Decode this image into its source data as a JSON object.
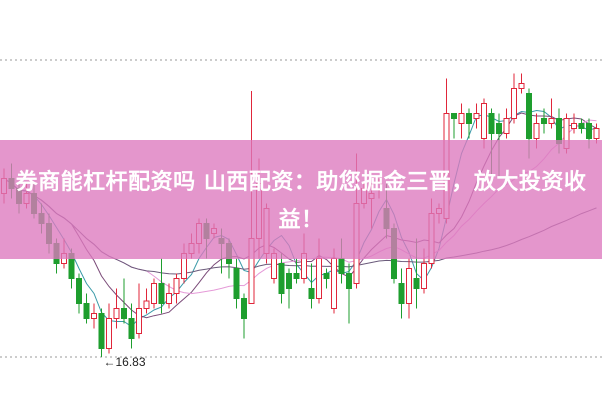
{
  "title": "券商能杠杆配资吗 山西配资：助您掘金三晋，放大投资收益！",
  "colors": {
    "up": "#e0263a",
    "down": "#1e9e2e",
    "banner": "#dd78be",
    "ma5": "#3a9aa8",
    "ma10": "#7a4a78",
    "ma20": "#e59ad8",
    "ma60": "#6a5a7a"
  },
  "chart_data": {
    "type": "candlestick",
    "annotations": [
      {
        "label": "←16.83",
        "price": 16.83,
        "candle": 14
      }
    ],
    "moving_averages": [
      5,
      10,
      20,
      60
    ],
    "grid": "dashed top and bottom lines",
    "ylim": [
      16.8,
      23.0
    ],
    "ohlc": [
      [
        20.1,
        20.4,
        20.6,
        19.9
      ],
      [
        20.4,
        20.2,
        20.7,
        20.0
      ],
      [
        20.2,
        19.9,
        20.3,
        19.7
      ],
      [
        19.9,
        20.1,
        20.3,
        19.8
      ],
      [
        20.1,
        19.7,
        20.3,
        19.6
      ],
      [
        19.7,
        19.5,
        19.9,
        19.3
      ],
      [
        19.5,
        19.1,
        19.7,
        18.9
      ],
      [
        19.1,
        18.7,
        19.2,
        18.5
      ],
      [
        18.7,
        18.9,
        19.2,
        18.6
      ],
      [
        18.9,
        18.4,
        19.0,
        18.2
      ],
      [
        18.4,
        17.9,
        18.5,
        17.7
      ],
      [
        17.9,
        17.6,
        18.1,
        17.5
      ],
      [
        17.6,
        17.7,
        17.9,
        17.4
      ],
      [
        17.7,
        17.0,
        17.8,
        16.83
      ],
      [
        17.0,
        17.6,
        17.9,
        16.9
      ],
      [
        17.6,
        17.8,
        18.2,
        17.4
      ],
      [
        17.8,
        17.6,
        18.4,
        17.5
      ],
      [
        17.6,
        17.2,
        17.9,
        17.0
      ],
      [
        17.3,
        17.8,
        18.3,
        17.2
      ],
      [
        17.8,
        17.95,
        18.2,
        17.7
      ],
      [
        17.9,
        18.3,
        18.4,
        17.8
      ],
      [
        18.3,
        17.9,
        18.8,
        17.7
      ],
      [
        17.9,
        18.1,
        18.3,
        17.8
      ],
      [
        18.1,
        18.4,
        18.5,
        17.9
      ],
      [
        18.4,
        18.9,
        19.1,
        18.3
      ],
      [
        18.9,
        19.1,
        19.3,
        18.8
      ],
      [
        19.1,
        19.5,
        19.6,
        18.9
      ],
      [
        19.5,
        19.2,
        19.6,
        18.8
      ],
      [
        19.3,
        19.4,
        19.5,
        19.2
      ],
      [
        19.2,
        19.1,
        19.4,
        18.5
      ],
      [
        19.1,
        18.7,
        19.2,
        18.4
      ],
      [
        18.6,
        18.0,
        18.8,
        17.8
      ],
      [
        18.0,
        17.6,
        18.1,
        17.2
      ],
      [
        17.9,
        19.2,
        22.15,
        17.9
      ],
      [
        19.2,
        20.3,
        20.8,
        18.8
      ],
      [
        18.9,
        19.8,
        19.9,
        18.7
      ],
      [
        18.4,
        18.9,
        19.0,
        18.3
      ],
      [
        18.7,
        18.1,
        18.9,
        17.9
      ],
      [
        18.5,
        18.2,
        18.6,
        17.8
      ],
      [
        18.5,
        18.4,
        18.8,
        18.3
      ],
      [
        18.4,
        18.9,
        19.3,
        18.3
      ],
      [
        18.2,
        18.0,
        18.7,
        17.8
      ],
      [
        18.0,
        18.8,
        19.2,
        17.9
      ],
      [
        18.5,
        18.4,
        18.6,
        18.2
      ],
      [
        17.8,
        18.8,
        19.0,
        17.7
      ],
      [
        18.8,
        18.5,
        19.2,
        18.3
      ],
      [
        18.5,
        18.2,
        18.7,
        17.5
      ],
      [
        18.3,
        19.9,
        20.9,
        18.2
      ],
      [
        19.9,
        20.2,
        20.3,
        19.8
      ],
      [
        20.0,
        20.1,
        20.3,
        19.4
      ],
      [
        20.2,
        20.3,
        20.4,
        20.0
      ],
      [
        19.8,
        19.4,
        20.3,
        19.2
      ],
      [
        19.4,
        18.4,
        19.5,
        18.3
      ],
      [
        18.3,
        17.9,
        18.6,
        17.6
      ],
      [
        17.9,
        18.6,
        18.8,
        17.6
      ],
      [
        18.4,
        18.2,
        19.2,
        17.8
      ],
      [
        18.2,
        18.7,
        19.0,
        18.1
      ],
      [
        18.7,
        19.7,
        20.0,
        18.6
      ],
      [
        19.7,
        19.8,
        19.9,
        19.5
      ],
      [
        19.6,
        21.7,
        22.4,
        19.5
      ],
      [
        21.7,
        21.6,
        21.7,
        21.2
      ],
      [
        21.5,
        21.7,
        21.9,
        21.2
      ],
      [
        21.7,
        21.5,
        21.8,
        21.2
      ],
      [
        21.6,
        21.7,
        21.9,
        21.4
      ],
      [
        21.2,
        21.9,
        22.0,
        21.0
      ],
      [
        21.7,
        21.3,
        21.8,
        20.3
      ],
      [
        21.5,
        21.3,
        21.7,
        20.4
      ],
      [
        21.3,
        21.6,
        21.8,
        21.2
      ],
      [
        21.6,
        22.2,
        22.5,
        21.5
      ],
      [
        22.2,
        22.3,
        22.5,
        22.1
      ],
      [
        22.1,
        21.2,
        22.2,
        20.8
      ],
      [
        21.2,
        21.5,
        21.7,
        21.0
      ],
      [
        21.6,
        21.5,
        21.8,
        21.3
      ],
      [
        21.5,
        21.6,
        22.0,
        21.4
      ],
      [
        21.6,
        21.1,
        21.8,
        20.9
      ],
      [
        21.0,
        21.6,
        21.7,
        20.9
      ],
      [
        21.4,
        21.5,
        21.7,
        21.3
      ],
      [
        21.5,
        21.4,
        21.6,
        21.3
      ],
      [
        21.5,
        21.2,
        21.6,
        21.0
      ],
      [
        21.2,
        21.4,
        21.5,
        21.1
      ]
    ]
  }
}
